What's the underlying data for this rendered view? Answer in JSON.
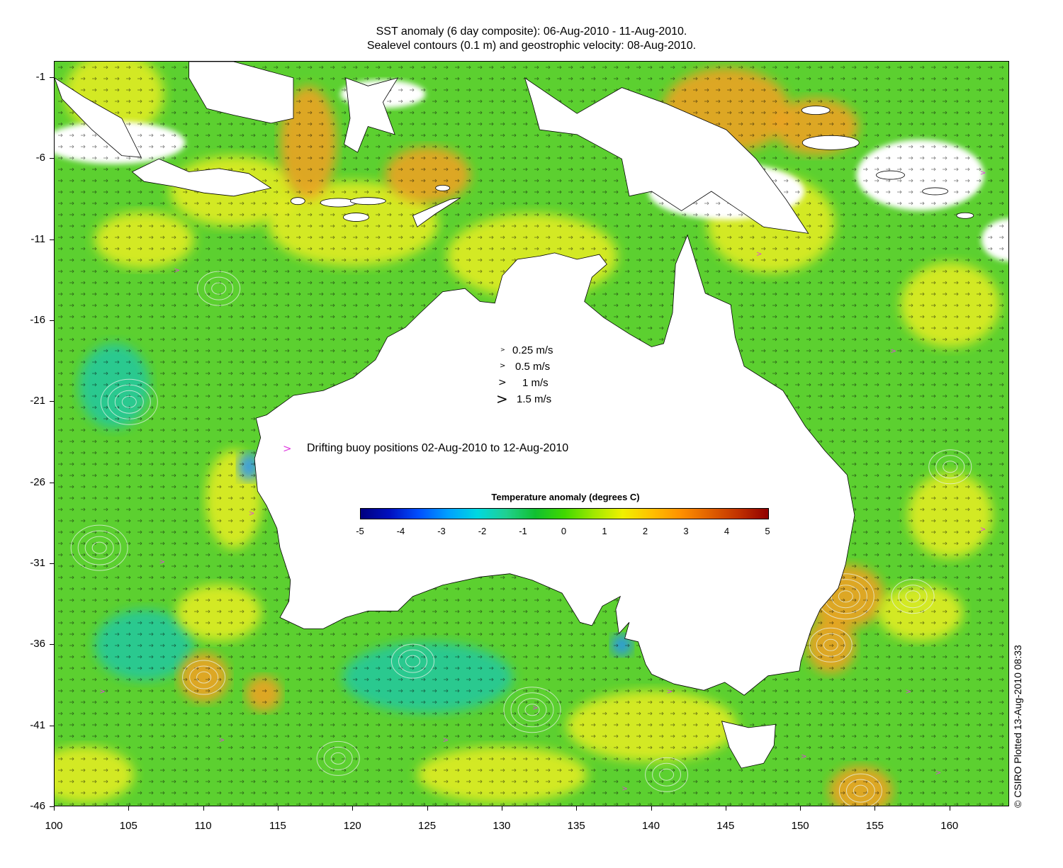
{
  "header": {
    "title_line1": "SST anomaly (6 day composite): 06-Aug-2010 - 11-Aug-2010.",
    "title_line2": "Sealevel contours (0.1 m) and geostrophic velocity: 08-Aug-2010."
  },
  "axes": {
    "x_ticks": [
      "100",
      "105",
      "110",
      "115",
      "120",
      "125",
      "130",
      "135",
      "140",
      "145",
      "150",
      "155",
      "160"
    ],
    "y_ticks": [
      "-1",
      "-6",
      "-11",
      "-16",
      "-21",
      "-26",
      "-31",
      "-36",
      "-41",
      "-46"
    ],
    "lon_range": [
      100,
      164
    ],
    "lat_range": [
      -46,
      0
    ]
  },
  "velocity_legend": [
    {
      "label": "0.25 m/s",
      "glyph": ">"
    },
    {
      "label": "0.5 m/s",
      "glyph": ">"
    },
    {
      "label": "1 m/s",
      "glyph": ">"
    },
    {
      "label": "1.5 m/s",
      "glyph": ">"
    }
  ],
  "buoy_legend": {
    "glyph": ">",
    "label": "Drifting buoy positions 02-Aug-2010 to 12-Aug-2010",
    "color": "#e040e0"
  },
  "colorbar": {
    "title": "Temperature anomaly (degrees C)",
    "ticks": [
      "-5",
      "-4",
      "-3",
      "-2",
      "-1",
      "0",
      "1",
      "2",
      "3",
      "4",
      "5"
    ],
    "range": [
      -5,
      5
    ],
    "colors": [
      "#00007f",
      "#0010c0",
      "#0050ff",
      "#00a0ff",
      "#00d8e0",
      "#20d090",
      "#10c030",
      "#40d800",
      "#a0e800",
      "#f0f000",
      "#ffc000",
      "#ff9000",
      "#e06000",
      "#c03000",
      "#900000"
    ]
  },
  "map_colors": {
    "ocean_base": "#5cd030",
    "ocean_warm": "#e8ee20",
    "ocean_hot": "#f4a020",
    "ocean_cool": "#20c8a0",
    "ocean_cold": "#2090ff",
    "land": "#ffffff",
    "coast": "#000000",
    "contour": "#e8f0e8"
  },
  "copyright": "© CSIRO Plotted 13-Aug-2010 08:33"
}
